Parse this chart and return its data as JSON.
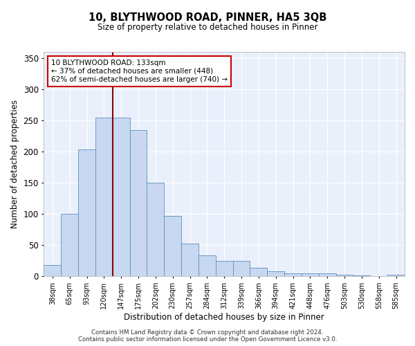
{
  "title": "10, BLYTHWOOD ROAD, PINNER, HA5 3QB",
  "subtitle": "Size of property relative to detached houses in Pinner",
  "xlabel": "Distribution of detached houses by size in Pinner",
  "ylabel": "Number of detached properties",
  "bar_labels": [
    "38sqm",
    "65sqm",
    "93sqm",
    "120sqm",
    "147sqm",
    "175sqm",
    "202sqm",
    "230sqm",
    "257sqm",
    "284sqm",
    "312sqm",
    "339sqm",
    "366sqm",
    "394sqm",
    "421sqm",
    "448sqm",
    "476sqm",
    "503sqm",
    "530sqm",
    "558sqm",
    "585sqm"
  ],
  "bar_values": [
    18,
    100,
    204,
    255,
    255,
    235,
    150,
    97,
    53,
    34,
    25,
    25,
    14,
    8,
    5,
    5,
    5,
    3,
    1,
    0,
    3
  ],
  "bar_color": "#c8d8f0",
  "bar_edge_color": "#5a8fc0",
  "vline_x": 3.5,
  "vline_color": "#8b0000",
  "annotation_text": "10 BLYTHWOOD ROAD: 133sqm\n← 37% of detached houses are smaller (448)\n62% of semi-detached houses are larger (740) →",
  "annotation_box_color": "white",
  "annotation_box_edge": "#cc0000",
  "ylim": [
    0,
    360
  ],
  "yticks": [
    0,
    50,
    100,
    150,
    200,
    250,
    300,
    350
  ],
  "bg_color": "#eaf0fb",
  "footer_line1": "Contains HM Land Registry data © Crown copyright and database right 2024.",
  "footer_line2": "Contains public sector information licensed under the Open Government Licence v3.0."
}
